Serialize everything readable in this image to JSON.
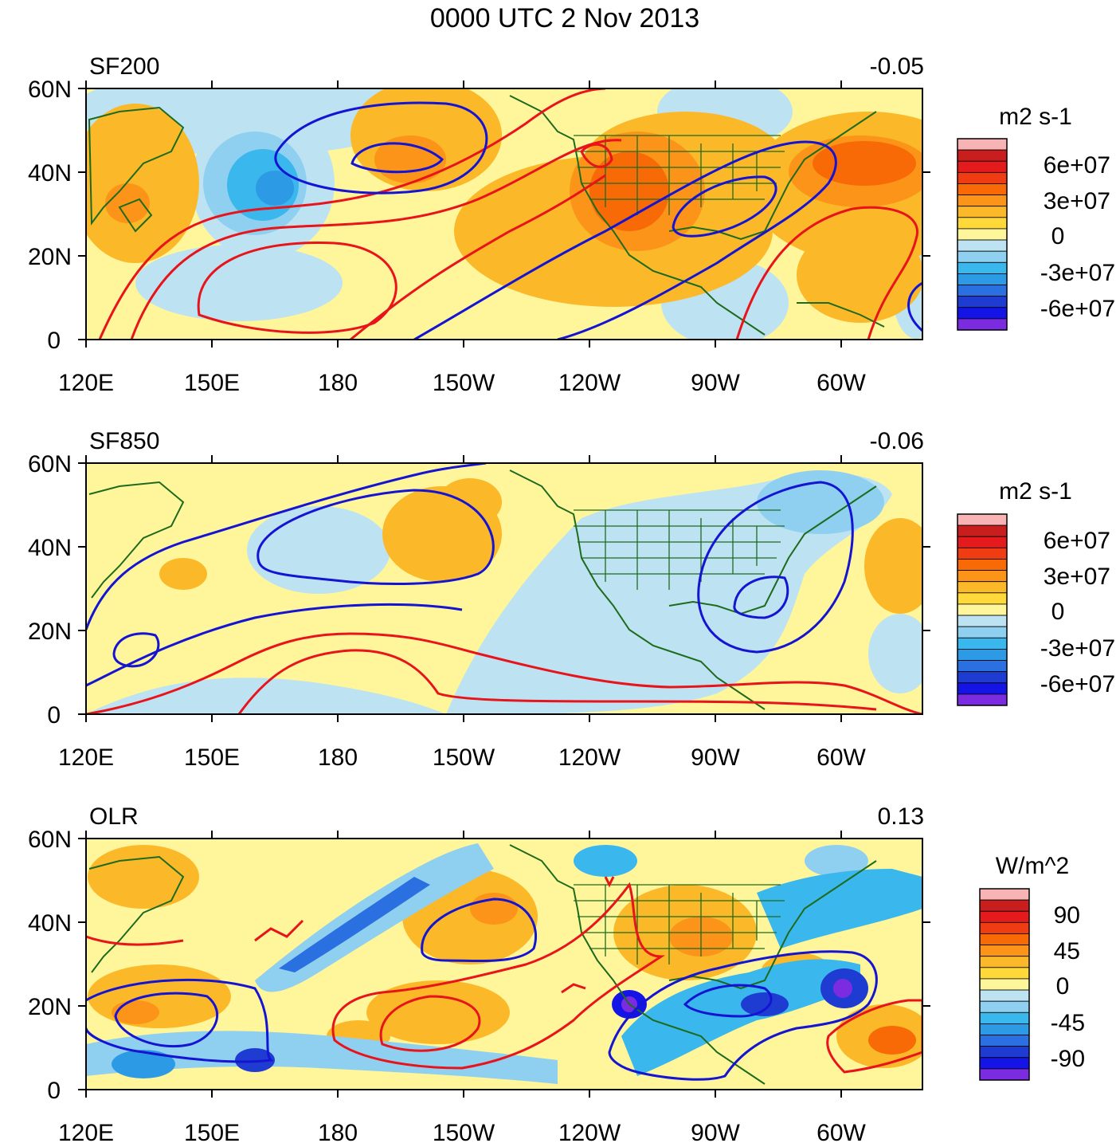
{
  "title": "0000 UTC 2 Nov 2013",
  "x_tick_labels": [
    "120E",
    "150E",
    "180",
    "150W",
    "120W",
    "90W",
    "60W"
  ],
  "y_tick_labels": [
    "0",
    "20N",
    "40N",
    "60N"
  ],
  "colors": {
    "coastline": "#1e6b1e",
    "positive_contour": "#e8141c",
    "negative_contour": "#1414d2",
    "frame": "#000000"
  },
  "panels": [
    {
      "name": "SF200",
      "correlation": "-0.05",
      "colorbar": {
        "units": "m2 s-1",
        "labels": [
          "6e+07",
          "3e+07",
          "0",
          "-3e+07",
          "-6e+07"
        ],
        "colors": [
          "#f8b4b4",
          "#c81e1e",
          "#e41a1c",
          "#f03c12",
          "#f86a06",
          "#fb9418",
          "#fbb828",
          "#ffd83a",
          "#fff59a",
          "#bde3f2",
          "#8fd0f0",
          "#3ab8ee",
          "#2d9ae6",
          "#2a70e0",
          "#1e3cd2",
          "#1414e6",
          "#7b2be0"
        ]
      }
    },
    {
      "name": "SF850",
      "correlation": "-0.06",
      "colorbar": {
        "units": "m2 s-1",
        "labels": [
          "6e+07",
          "3e+07",
          "0",
          "-3e+07",
          "-6e+07"
        ],
        "colors": [
          "#f8b4b4",
          "#c81e1e",
          "#e41a1c",
          "#f03c12",
          "#f86a06",
          "#fb9418",
          "#fbb828",
          "#ffd83a",
          "#fff59a",
          "#bde3f2",
          "#8fd0f0",
          "#3ab8ee",
          "#2d9ae6",
          "#2a70e0",
          "#1e3cd2",
          "#1414e6",
          "#7b2be0"
        ]
      }
    },
    {
      "name": "OLR",
      "correlation": "0.13",
      "colorbar": {
        "units": "W/m^2",
        "labels": [
          "90",
          "45",
          "0",
          "-45",
          "-90"
        ],
        "colors": [
          "#f8b4b4",
          "#c81e1e",
          "#e41a1c",
          "#f03c12",
          "#f86a06",
          "#fb9418",
          "#fbb828",
          "#ffd83a",
          "#fff59a",
          "#bde3f2",
          "#8fd0f0",
          "#3ab8ee",
          "#2d9ae6",
          "#2a70e0",
          "#1e3cd2",
          "#1414e6",
          "#7b2be0"
        ]
      }
    }
  ]
}
